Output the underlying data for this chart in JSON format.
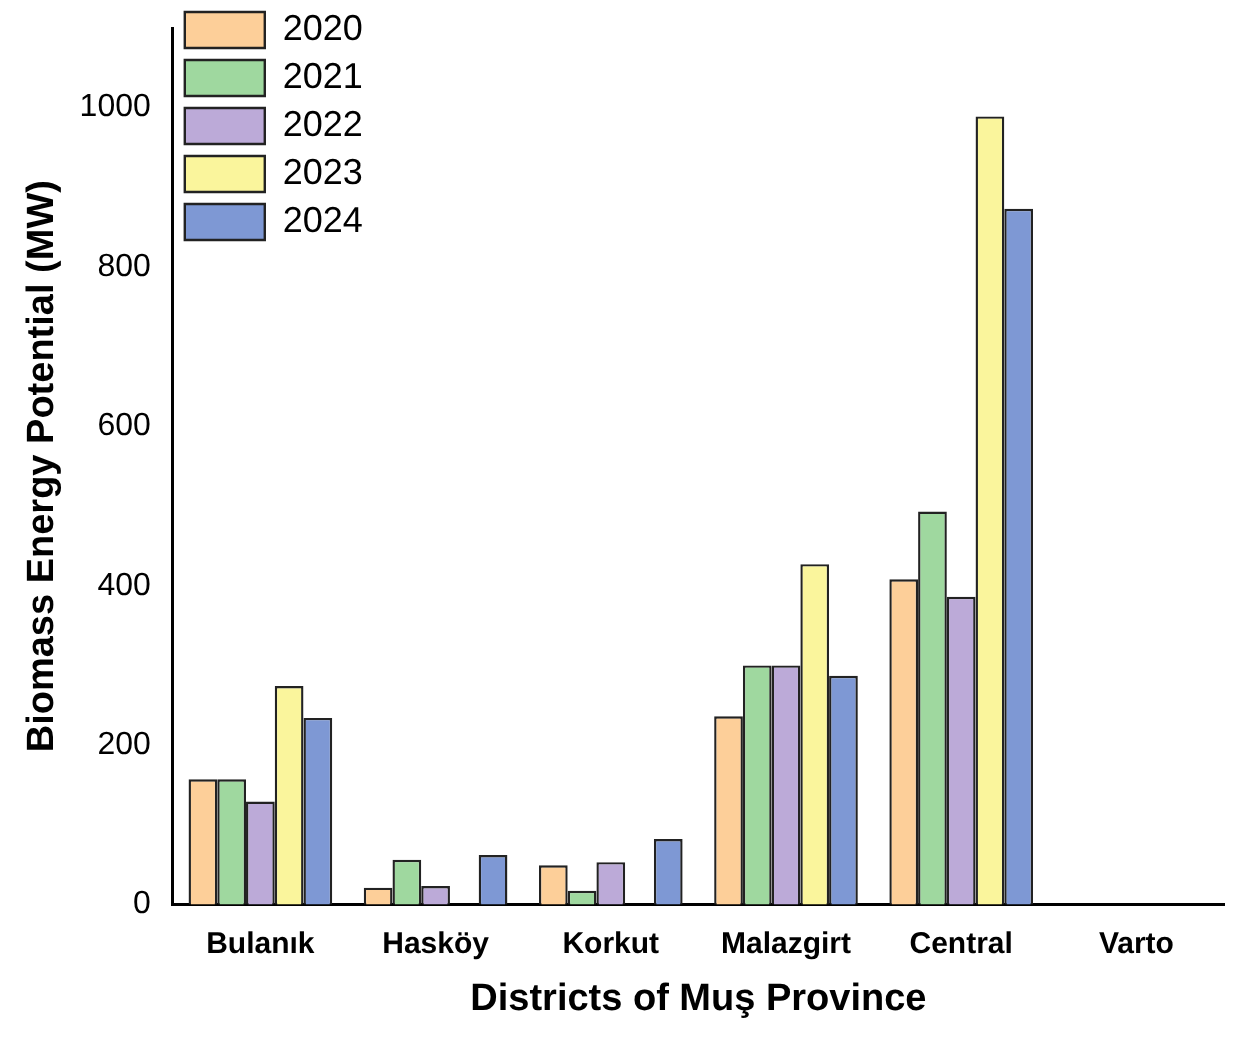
{
  "chart_data": {
    "type": "bar",
    "xlabel": "Districts of Muş Province",
    "ylabel": "Biomass Energy Potential (MW)",
    "categories": [
      "Bulanık",
      "Hasköy",
      "Korkut",
      "Malazgirt",
      "Central",
      "Varto"
    ],
    "series": [
      {
        "name": "2020",
        "color": "#fdcf99",
        "values": [
          157,
          21,
          49,
          236,
          408,
          0
        ]
      },
      {
        "name": "2021",
        "color": "#9fd89f",
        "values": [
          157,
          56,
          17,
          300,
          493,
          0
        ]
      },
      {
        "name": "2022",
        "color": "#bcaad8",
        "values": [
          129,
          23,
          53,
          300,
          386,
          0
        ]
      },
      {
        "name": "2023",
        "color": "#faf59c",
        "values": [
          274,
          0,
          0,
          427,
          989,
          0
        ]
      },
      {
        "name": "2024",
        "color": "#7e98d4",
        "values": [
          234,
          62,
          82,
          287,
          873,
          0
        ]
      }
    ],
    "ylim": [
      0,
      1100
    ],
    "yticks": [
      0,
      200,
      400,
      600,
      800,
      1000
    ],
    "grid": false,
    "legend": "top left"
  }
}
